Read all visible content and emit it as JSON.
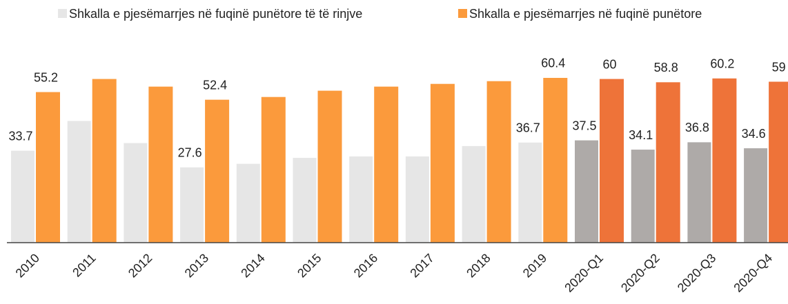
{
  "chart_data": {
    "type": "bar",
    "categories": [
      "2010",
      "2011",
      "2012",
      "2013",
      "2014",
      "2015",
      "2016",
      "2017",
      "2018",
      "2019",
      "2020-Q1",
      "2020-Q2",
      "2020-Q3",
      "2020-Q4"
    ],
    "series": [
      {
        "name": "Shkalla e pjesëmarrjes në fuqinë punëtore të të rinjve",
        "color": "#e6e6e6",
        "colors": [
          "#e6e6e6",
          "#e6e6e6",
          "#e6e6e6",
          "#e6e6e6",
          "#e6e6e6",
          "#e6e6e6",
          "#e6e6e6",
          "#e6e6e6",
          "#e6e6e6",
          "#e6e6e6",
          "#aeaaa8",
          "#aeaaa8",
          "#aeaaa8",
          "#aeaaa8"
        ],
        "values": [
          33.7,
          44.6,
          36.5,
          27.6,
          28.9,
          31.1,
          31.6,
          31.6,
          35.4,
          36.7,
          37.5,
          34.1,
          36.8,
          34.6
        ],
        "value_labels": [
          "33.7",
          null,
          null,
          "27.6",
          null,
          null,
          null,
          null,
          null,
          "36.7",
          "37.5",
          "34.1",
          "36.8",
          "34.6"
        ]
      },
      {
        "name": "Shkalla e pjesëmarrjes në fuqinë punëtore",
        "color": "#fb9a3c",
        "colors": [
          "#fb9a3c",
          "#fb9a3c",
          "#fb9a3c",
          "#fb9a3c",
          "#fb9a3c",
          "#fb9a3c",
          "#fb9a3c",
          "#fb9a3c",
          "#fb9a3c",
          "#fb9a3c",
          "#ee7339",
          "#ee7339",
          "#ee7339",
          "#ee7339"
        ],
        "values": [
          55.2,
          60.0,
          57.2,
          52.4,
          53.4,
          55.7,
          57.2,
          58.2,
          59.2,
          60.4,
          60,
          58.8,
          60.2,
          59
        ],
        "value_labels": [
          "55.2",
          null,
          null,
          "52.4",
          null,
          null,
          null,
          null,
          null,
          "60.4",
          "60",
          "58.8",
          "60.2",
          "59"
        ]
      }
    ],
    "ylim": [
      0,
      70
    ]
  }
}
